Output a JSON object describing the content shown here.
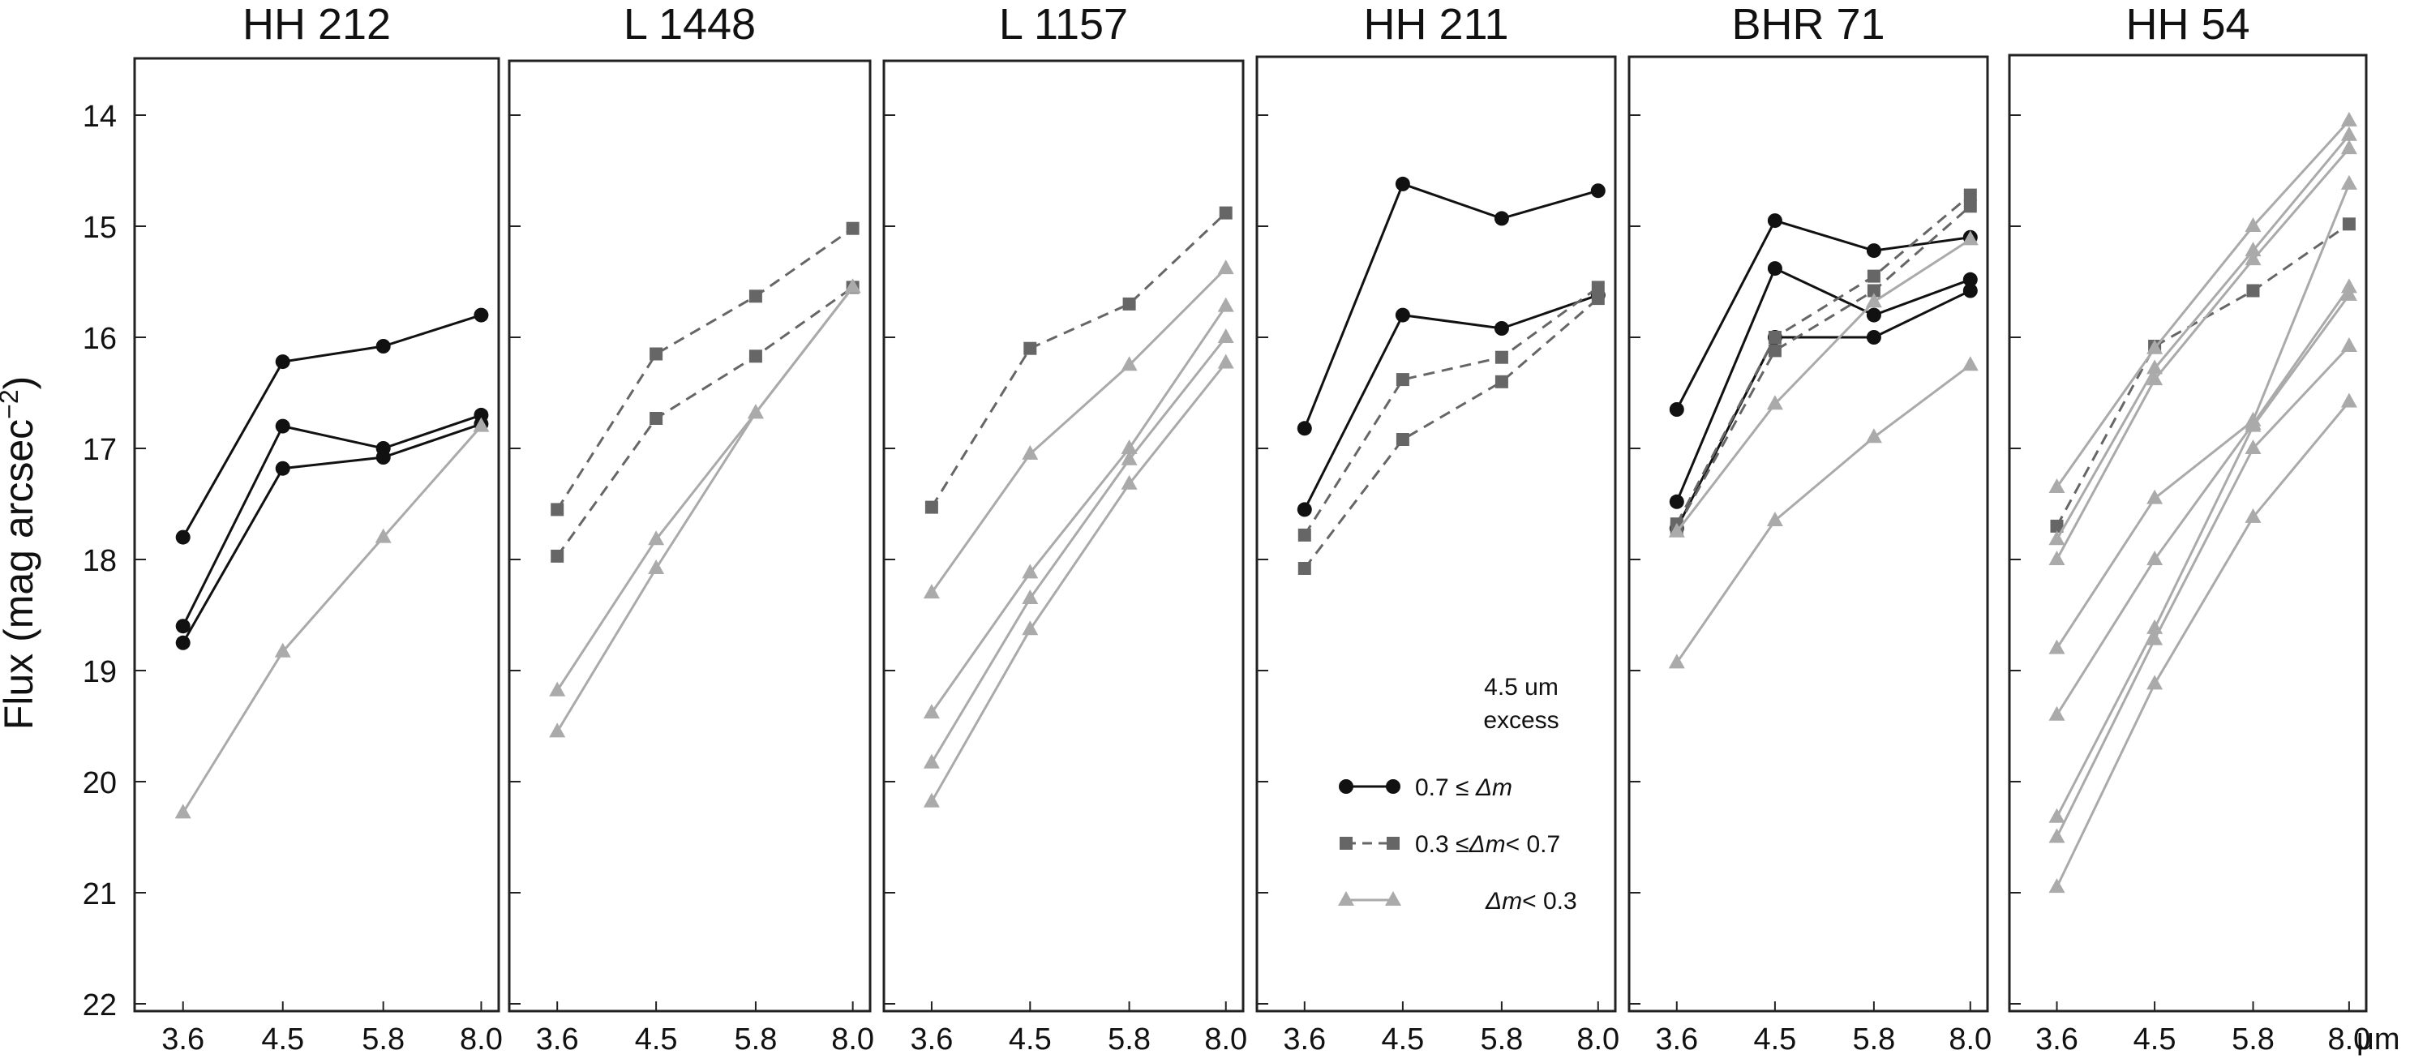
{
  "chart_data": {
    "type": "line",
    "ylabel_main": "Flux (mag arcsec",
    "ylabel_sup": "−2",
    "ylabel_close": ")",
    "x_unit": "μm",
    "x_ticks": [
      "3.6",
      "4.5",
      "5.8",
      "8.0"
    ],
    "y_ticks": [
      "14",
      "15",
      "16",
      "17",
      "18",
      "19",
      "20",
      "21",
      "22"
    ],
    "ylim": [
      13.5,
      22
    ],
    "y_inverted": true,
    "colors": {
      "strong": "#111111",
      "medium": "#666666",
      "weak": "#aaaaaa",
      "frame": "#222222"
    },
    "legend": {
      "title_line1": "4.5 um",
      "title_line2": "excess",
      "entries": [
        {
          "cls": "strong",
          "label_pre": "0.7 ≤ ",
          "label_em": "Δm",
          "label_post": ""
        },
        {
          "cls": "medium",
          "label_pre": "0.3 ≤",
          "label_em": "Δm",
          "label_post": "< 0.7"
        },
        {
          "cls": "weak",
          "label_pre": "",
          "label_em": "Δm",
          "label_post": "< 0.3"
        }
      ]
    },
    "panels": [
      {
        "title": "HH 212",
        "series": [
          {
            "cls": "strong",
            "values": [
              17.8,
              16.22,
              16.08,
              15.8
            ]
          },
          {
            "cls": "strong",
            "values": [
              18.6,
              16.8,
              17.0,
              16.7
            ]
          },
          {
            "cls": "strong",
            "values": [
              18.75,
              17.18,
              17.08,
              16.78
            ]
          },
          {
            "cls": "weak",
            "values": [
              20.28,
              18.83,
              17.8,
              16.8
            ]
          }
        ]
      },
      {
        "title": "L 1448",
        "series": [
          {
            "cls": "medium",
            "values": [
              17.55,
              16.15,
              15.63,
              15.02
            ]
          },
          {
            "cls": "medium",
            "values": [
              17.97,
              16.73,
              16.17,
              15.55
            ]
          },
          {
            "cls": "weak",
            "values": [
              19.18,
              17.82,
              16.68,
              15.55
            ]
          },
          {
            "cls": "weak",
            "values": [
              19.55,
              18.08,
              16.68,
              15.55
            ]
          }
        ]
      },
      {
        "title": "L 1157",
        "series": [
          {
            "cls": "medium",
            "values": [
              17.53,
              16.1,
              15.7,
              14.88
            ]
          },
          {
            "cls": "weak",
            "values": [
              18.3,
              17.05,
              16.25,
              15.38
            ]
          },
          {
            "cls": "weak",
            "values": [
              19.38,
              18.12,
              17.0,
              15.72
            ]
          },
          {
            "cls": "weak",
            "values": [
              19.83,
              18.35,
              17.1,
              16.0
            ]
          },
          {
            "cls": "weak",
            "values": [
              20.18,
              18.63,
              17.32,
              16.23
            ]
          }
        ]
      },
      {
        "title": "HH 211",
        "series": [
          {
            "cls": "strong",
            "values": [
              16.82,
              14.62,
              14.93,
              14.68
            ]
          },
          {
            "cls": "strong",
            "values": [
              17.55,
              15.8,
              15.92,
              15.62
            ]
          },
          {
            "cls": "medium",
            "values": [
              17.78,
              16.38,
              16.18,
              15.55
            ]
          },
          {
            "cls": "medium",
            "values": [
              18.08,
              16.92,
              16.4,
              15.65
            ]
          }
        ]
      },
      {
        "title": "BHR 71",
        "series": [
          {
            "cls": "strong",
            "values": [
              16.65,
              14.95,
              15.22,
              15.1
            ]
          },
          {
            "cls": "strong",
            "values": [
              17.48,
              15.38,
              15.8,
              15.48
            ]
          },
          {
            "cls": "strong",
            "values": [
              17.72,
              16.0,
              16.0,
              15.58
            ]
          },
          {
            "cls": "medium",
            "values": [
              17.68,
              16.0,
              15.45,
              14.72
            ]
          },
          {
            "cls": "medium",
            "values": [
              17.72,
              16.12,
              15.58,
              14.82
            ]
          },
          {
            "cls": "weak",
            "values": [
              17.75,
              16.6,
              15.68,
              15.12
            ]
          },
          {
            "cls": "weak",
            "values": [
              18.93,
              17.65,
              16.9,
              16.25
            ]
          }
        ]
      },
      {
        "title": "HH 54",
        "series": [
          {
            "cls": "medium",
            "values": [
              17.7,
              16.08,
              15.58,
              14.98
            ]
          },
          {
            "cls": "weak",
            "values": [
              17.35,
              16.1,
              15.0,
              14.05
            ]
          },
          {
            "cls": "weak",
            "values": [
              17.82,
              16.28,
              15.22,
              14.18
            ]
          },
          {
            "cls": "weak",
            "values": [
              18.0,
              16.38,
              15.3,
              14.3
            ]
          },
          {
            "cls": "weak",
            "values": [
              18.8,
              17.45,
              16.75,
              14.62
            ]
          },
          {
            "cls": "weak",
            "values": [
              19.4,
              18.0,
              16.78,
              15.55
            ]
          },
          {
            "cls": "weak",
            "values": [
              20.32,
              18.62,
              16.8,
              15.62
            ]
          },
          {
            "cls": "weak",
            "values": [
              20.5,
              18.72,
              17.0,
              16.08
            ]
          },
          {
            "cls": "weak",
            "values": [
              20.95,
              19.12,
              17.62,
              16.58
            ]
          }
        ]
      }
    ]
  }
}
